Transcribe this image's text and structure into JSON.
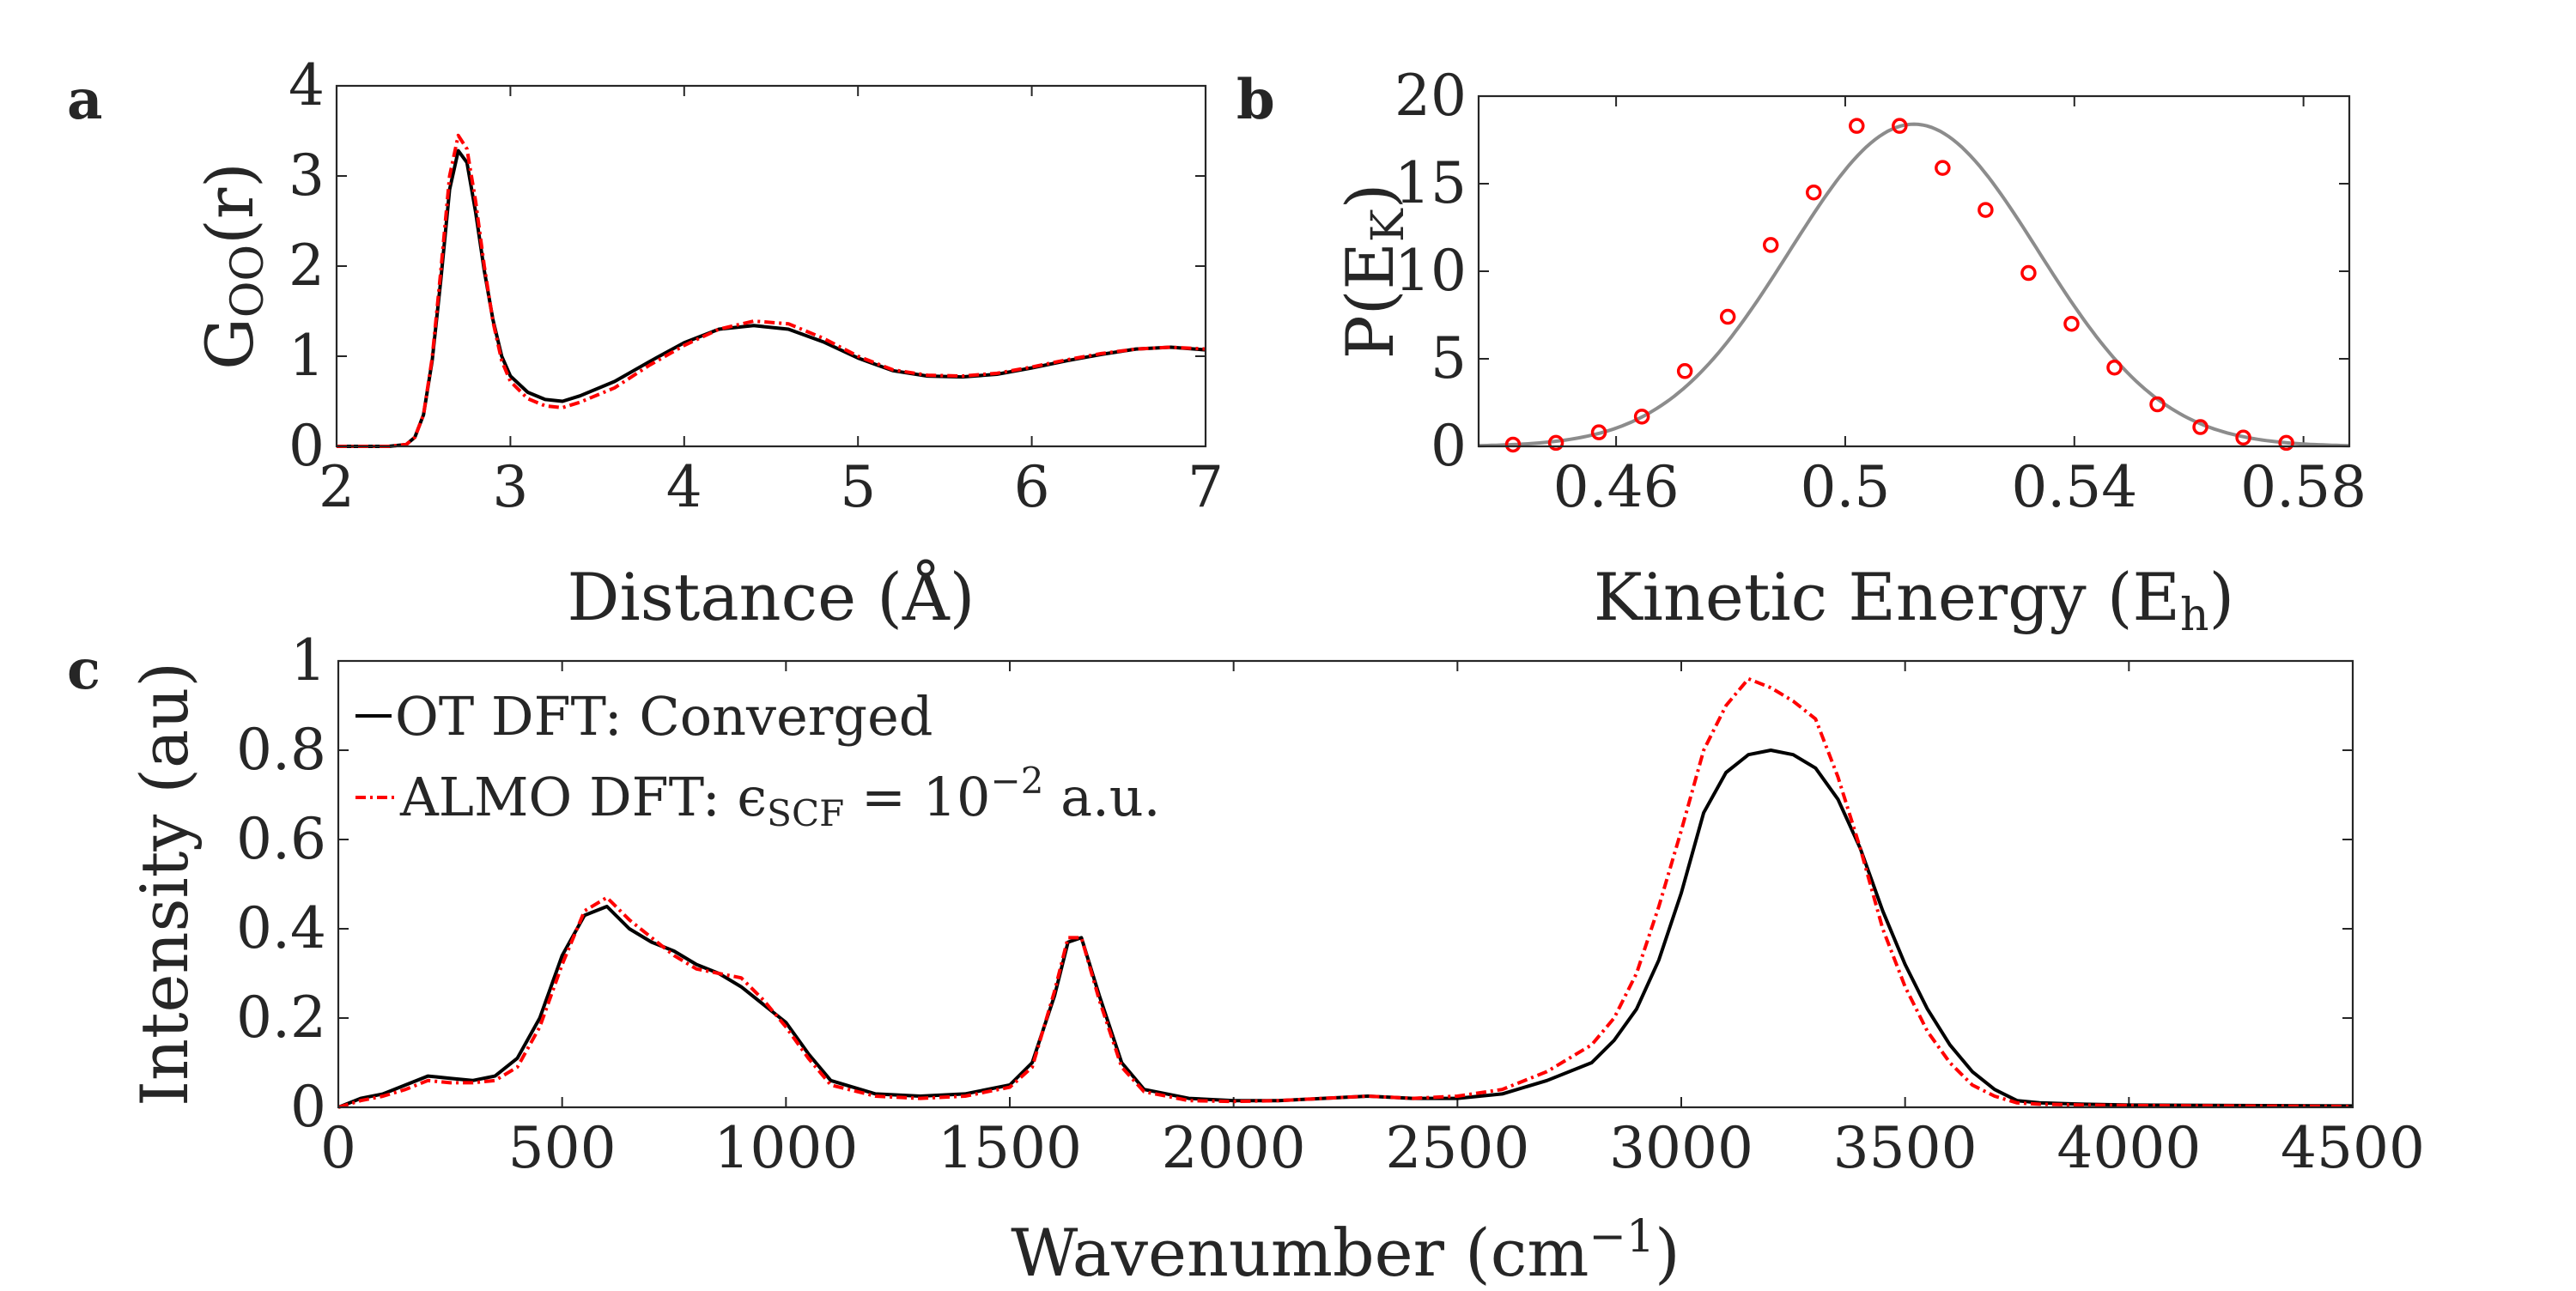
{
  "colors": {
    "black": "#000000",
    "red": "#ff0000",
    "gray": "#8c8c8c",
    "axis": "#262626"
  },
  "chart_data": [
    {
      "panel": "a",
      "type": "line",
      "xlabel": "Distance (Å)",
      "ylabel_main": "G",
      "ylabel_sub": "OO",
      "ylabel_tail": "(r)",
      "xlim": [
        2,
        7
      ],
      "ylim": [
        0,
        4
      ],
      "xticks": [
        2,
        3,
        4,
        5,
        6,
        7
      ],
      "yticks": [
        0,
        1,
        2,
        3,
        4
      ],
      "series": [
        {
          "style": "solid",
          "color": "#000000",
          "x": [
            2.0,
            2.3,
            2.4,
            2.45,
            2.5,
            2.55,
            2.6,
            2.65,
            2.7,
            2.75,
            2.8,
            2.85,
            2.9,
            2.95,
            3.0,
            3.1,
            3.2,
            3.3,
            3.4,
            3.6,
            3.8,
            4.0,
            4.2,
            4.4,
            4.6,
            4.8,
            5.0,
            5.2,
            5.4,
            5.6,
            5.8,
            6.0,
            6.2,
            6.4,
            6.6,
            6.8,
            7.0
          ],
          "y": [
            0,
            0,
            0.02,
            0.1,
            0.35,
            0.95,
            1.85,
            2.85,
            3.28,
            3.15,
            2.6,
            1.95,
            1.4,
            1.0,
            0.78,
            0.6,
            0.52,
            0.5,
            0.56,
            0.72,
            0.94,
            1.15,
            1.3,
            1.34,
            1.3,
            1.16,
            0.98,
            0.84,
            0.78,
            0.77,
            0.8,
            0.87,
            0.95,
            1.02,
            1.08,
            1.1,
            1.07
          ]
        },
        {
          "style": "dashdot",
          "color": "#ff0000",
          "x": [
            2.0,
            2.3,
            2.4,
            2.45,
            2.5,
            2.55,
            2.6,
            2.65,
            2.7,
            2.75,
            2.8,
            2.85,
            2.9,
            2.95,
            3.0,
            3.1,
            3.2,
            3.3,
            3.4,
            3.6,
            3.8,
            4.0,
            4.2,
            4.4,
            4.6,
            4.8,
            5.0,
            5.2,
            5.4,
            5.6,
            5.8,
            6.0,
            6.2,
            6.4,
            6.6,
            6.8,
            7.0
          ],
          "y": [
            0,
            0,
            0.02,
            0.1,
            0.35,
            0.98,
            1.95,
            3.0,
            3.45,
            3.3,
            2.72,
            2.0,
            1.38,
            0.95,
            0.72,
            0.53,
            0.45,
            0.43,
            0.49,
            0.65,
            0.9,
            1.12,
            1.3,
            1.39,
            1.36,
            1.2,
            1.0,
            0.85,
            0.79,
            0.78,
            0.81,
            0.88,
            0.96,
            1.03,
            1.08,
            1.1,
            1.08
          ]
        }
      ]
    },
    {
      "panel": "b",
      "type": "scatter",
      "xlabel_main": "Kinetic Energy (E",
      "xlabel_sub": "h",
      "xlabel_tail": ")",
      "ylabel_main": "P(E",
      "ylabel_sub": "K",
      "ylabel_tail": ")",
      "xlim": [
        0.436,
        0.588
      ],
      "ylim": [
        0,
        20
      ],
      "xticks": [
        0.46,
        0.5,
        0.54,
        0.58
      ],
      "xtick_labels": [
        "0.46",
        "0.5",
        "0.54",
        "0.58"
      ],
      "yticks": [
        0,
        5,
        10,
        15,
        20
      ],
      "curve": {
        "color": "#8c8c8c",
        "mean": 0.512,
        "sigma": 0.0217,
        "peak": 18.4
      },
      "points": {
        "color": "#ff0000",
        "x": [
          0.442,
          0.4495,
          0.457,
          0.4645,
          0.472,
          0.4795,
          0.487,
          0.4945,
          0.502,
          0.5095,
          0.517,
          0.5245,
          0.532,
          0.5395,
          0.547,
          0.5545,
          0.562,
          0.5695,
          0.577
        ],
        "y": [
          0.1,
          0.2,
          0.8,
          1.7,
          4.3,
          7.4,
          11.5,
          14.5,
          18.3,
          18.3,
          15.9,
          13.5,
          9.9,
          7.0,
          4.5,
          2.4,
          1.1,
          0.5,
          0.2
        ]
      }
    },
    {
      "panel": "c",
      "type": "line",
      "xlabel_main": "Wavenumber (cm",
      "xlabel_sup": "−1",
      "xlabel_tail": ")",
      "ylabel": "Intensity (au)",
      "xlim": [
        0,
        4500
      ],
      "ylim": [
        0,
        1
      ],
      "xticks": [
        0,
        500,
        1000,
        1500,
        2000,
        2500,
        3000,
        3500,
        4000,
        4500
      ],
      "yticks": [
        0,
        0.2,
        0.4,
        0.6,
        0.8,
        1
      ],
      "ytick_labels": [
        "0",
        "0.2",
        "0.4",
        "0.6",
        "0.8",
        "1"
      ],
      "legend": [
        {
          "label": "OT DFT: Converged",
          "color": "#000000",
          "style": "solid"
        },
        {
          "label_pre": "ALMO DFT: ϵ",
          "label_sub": "SCF",
          "label_mid": " = 10",
          "label_sup": "−2",
          "label_post": " a.u.",
          "color": "#ff0000",
          "style": "dashdot"
        }
      ],
      "series": [
        {
          "style": "solid",
          "color": "#000000",
          "x": [
            0,
            50,
            100,
            150,
            200,
            250,
            300,
            350,
            400,
            450,
            500,
            550,
            600,
            650,
            700,
            750,
            800,
            850,
            900,
            950,
            1000,
            1050,
            1100,
            1200,
            1300,
            1400,
            1500,
            1550,
            1600,
            1630,
            1660,
            1700,
            1750,
            1800,
            1900,
            2000,
            2100,
            2200,
            2300,
            2400,
            2500,
            2600,
            2700,
            2800,
            2850,
            2900,
            2950,
            3000,
            3050,
            3100,
            3150,
            3200,
            3250,
            3300,
            3350,
            3400,
            3450,
            3500,
            3550,
            3600,
            3650,
            3700,
            3750,
            3800,
            3900,
            4000,
            4500
          ],
          "y": [
            0,
            0.02,
            0.03,
            0.05,
            0.07,
            0.065,
            0.06,
            0.07,
            0.11,
            0.2,
            0.34,
            0.43,
            0.45,
            0.4,
            0.37,
            0.35,
            0.32,
            0.3,
            0.27,
            0.23,
            0.19,
            0.12,
            0.06,
            0.03,
            0.025,
            0.03,
            0.05,
            0.1,
            0.25,
            0.37,
            0.38,
            0.25,
            0.1,
            0.04,
            0.02,
            0.015,
            0.015,
            0.02,
            0.025,
            0.02,
            0.02,
            0.03,
            0.06,
            0.1,
            0.15,
            0.22,
            0.33,
            0.48,
            0.66,
            0.75,
            0.79,
            0.8,
            0.79,
            0.76,
            0.69,
            0.58,
            0.44,
            0.32,
            0.22,
            0.14,
            0.08,
            0.04,
            0.015,
            0.01,
            0.007,
            0.005,
            0.003
          ]
        },
        {
          "style": "dashdot",
          "color": "#ff0000",
          "x": [
            0,
            50,
            100,
            150,
            200,
            250,
            300,
            350,
            400,
            450,
            500,
            550,
            600,
            650,
            700,
            750,
            800,
            850,
            900,
            950,
            1000,
            1050,
            1100,
            1200,
            1300,
            1400,
            1500,
            1550,
            1600,
            1630,
            1660,
            1700,
            1750,
            1800,
            1900,
            2000,
            2100,
            2200,
            2300,
            2400,
            2500,
            2600,
            2700,
            2800,
            2850,
            2900,
            2950,
            3000,
            3050,
            3100,
            3150,
            3200,
            3250,
            3300,
            3350,
            3400,
            3450,
            3500,
            3550,
            3600,
            3650,
            3700,
            3750,
            3800,
            3900,
            4000,
            4500
          ],
          "y": [
            0,
            0.015,
            0.025,
            0.04,
            0.06,
            0.055,
            0.055,
            0.06,
            0.09,
            0.18,
            0.32,
            0.44,
            0.47,
            0.42,
            0.38,
            0.34,
            0.31,
            0.3,
            0.29,
            0.24,
            0.18,
            0.11,
            0.05,
            0.025,
            0.02,
            0.025,
            0.045,
            0.09,
            0.26,
            0.38,
            0.38,
            0.24,
            0.09,
            0.035,
            0.015,
            0.013,
            0.015,
            0.02,
            0.025,
            0.02,
            0.025,
            0.04,
            0.08,
            0.14,
            0.2,
            0.3,
            0.45,
            0.62,
            0.8,
            0.9,
            0.96,
            0.94,
            0.91,
            0.87,
            0.74,
            0.58,
            0.4,
            0.27,
            0.17,
            0.1,
            0.05,
            0.025,
            0.01,
            0.007,
            0.005,
            0.004,
            0.002
          ]
        }
      ]
    }
  ]
}
